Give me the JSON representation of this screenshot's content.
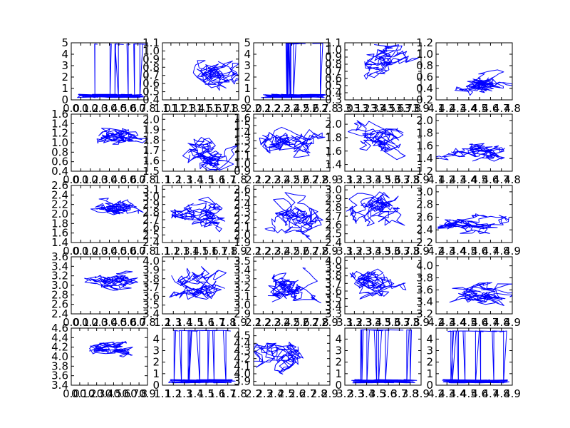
{
  "figure": {
    "grid": false,
    "line_color": "#0000ff",
    "layout": "5 rows x 5 columns of line subplots, no titles, no axis labels, no legend"
  },
  "chart_data": [
    {
      "type": "line",
      "xticks": [
        "0.0",
        "0.1",
        "0.2",
        "0.3",
        "0.4",
        "0.5",
        "0.6",
        "0.7",
        "0.8"
      ],
      "yticks": [
        "0",
        "1",
        "2",
        "3",
        "4",
        "5"
      ],
      "xlim": [
        0.0,
        0.8
      ],
      "ylim": [
        0,
        5
      ],
      "pattern": "spikes",
      "spike_top": 4.9
    },
    {
      "type": "line",
      "xticks": [
        "1.0",
        "1.1",
        "1.2",
        "1.3",
        "1.4",
        "1.5",
        "1.6",
        "1.7",
        "1.8",
        "1.9"
      ],
      "yticks": [
        "0.4",
        "0.5",
        "0.6",
        "0.7",
        "0.8",
        "0.9",
        "1.0",
        "1.1"
      ],
      "xlim": [
        1.0,
        1.9
      ],
      "ylim": [
        0.4,
        1.1
      ],
      "pattern": "walk",
      "center": [
        1.55,
        0.65
      ],
      "spread": [
        0.3,
        0.2
      ]
    },
    {
      "type": "line",
      "xticks": [
        "2.0",
        "2.1",
        "2.2",
        "2.3",
        "2.4",
        "2.5",
        "2.6",
        "2.7",
        "2.8"
      ],
      "yticks": [
        "0",
        "1",
        "2",
        "3",
        "4",
        "5"
      ],
      "xlim": [
        2.0,
        2.8
      ],
      "ylim": [
        0,
        5
      ],
      "pattern": "spikes",
      "spike_top": 4.95
    },
    {
      "type": "line",
      "xticks": [
        "3.0",
        "3.1",
        "3.2",
        "3.3",
        "3.4",
        "3.5",
        "3.6",
        "3.7",
        "3.8",
        "3.9"
      ],
      "yticks": [
        "0.3",
        "0.4",
        "0.5",
        "0.6",
        "0.7",
        "0.8",
        "0.9",
        "1.0",
        "1.1"
      ],
      "xlim": [
        3.0,
        3.9
      ],
      "ylim": [
        0.3,
        1.1
      ],
      "pattern": "walk",
      "center": [
        3.5,
        0.85
      ],
      "spread": [
        0.3,
        0.2
      ]
    },
    {
      "type": "line",
      "xticks": [
        "4.1",
        "4.2",
        "4.3",
        "4.4",
        "4.5",
        "4.6",
        "4.7",
        "4.8"
      ],
      "yticks": [
        "0.2",
        "0.4",
        "0.6",
        "0.8",
        "1.0",
        "1.2"
      ],
      "xlim": [
        4.1,
        4.8
      ],
      "ylim": [
        0.2,
        1.2
      ],
      "pattern": "walk",
      "center": [
        4.5,
        0.5
      ],
      "spread": [
        0.25,
        0.2
      ]
    },
    {
      "type": "line",
      "xticks": [
        "0.0",
        "0.1",
        "0.2",
        "0.3",
        "0.4",
        "0.5",
        "0.6",
        "0.7",
        "0.8"
      ],
      "yticks": [
        "0.4",
        "0.6",
        "0.8",
        "1.0",
        "1.2",
        "1.4",
        "1.6"
      ],
      "xlim": [
        0.0,
        0.8
      ],
      "ylim": [
        0.4,
        1.6
      ],
      "pattern": "walk",
      "center": [
        0.5,
        1.15
      ],
      "spread": [
        0.25,
        0.2
      ]
    },
    {
      "type": "line",
      "xticks": [
        "1.1",
        "1.2",
        "1.3",
        "1.4",
        "1.5",
        "1.6",
        "1.7",
        "1.8"
      ],
      "yticks": [
        "1.5",
        "1.6",
        "1.7",
        "1.8",
        "1.9",
        "2.0"
      ],
      "xlim": [
        1.1,
        1.8
      ],
      "ylim": [
        1.5,
        2.05
      ],
      "pattern": "walk",
      "center": [
        1.55,
        1.7
      ],
      "spread": [
        0.25,
        0.18
      ]
    },
    {
      "type": "line",
      "xticks": [
        "2.1",
        "2.2",
        "2.3",
        "2.4",
        "2.5",
        "2.6",
        "2.7",
        "2.8",
        "2.9"
      ],
      "yticks": [
        "0.9",
        "1.0",
        "1.1",
        "1.2",
        "1.3",
        "1.4",
        "1.5",
        "1.6"
      ],
      "xlim": [
        2.1,
        2.9
      ],
      "ylim": [
        0.9,
        1.65
      ],
      "pattern": "walk",
      "center": [
        2.5,
        1.25
      ],
      "spread": [
        0.3,
        0.25
      ]
    },
    {
      "type": "line",
      "xticks": [
        "3.1",
        "3.2",
        "3.3",
        "3.4",
        "3.5",
        "3.6",
        "3.7",
        "3.8",
        "3.9"
      ],
      "yticks": [
        "1.4",
        "1.6",
        "1.8",
        "2.0"
      ],
      "xlim": [
        3.2,
        3.9
      ],
      "ylim": [
        1.3,
        2.15
      ],
      "pattern": "walk",
      "center": [
        3.55,
        1.85
      ],
      "spread": [
        0.25,
        0.25
      ]
    },
    {
      "type": "line",
      "xticks": [
        "4.1",
        "4.2",
        "4.3",
        "4.4",
        "4.5",
        "4.6",
        "4.7",
        "4.8"
      ],
      "yticks": [
        "1.2",
        "1.4",
        "1.6",
        "1.8",
        "2.0"
      ],
      "xlim": [
        4.1,
        4.8
      ],
      "ylim": [
        1.2,
        2.1
      ],
      "pattern": "walk",
      "center": [
        4.5,
        1.5
      ],
      "spread": [
        0.25,
        0.15
      ]
    },
    {
      "type": "line",
      "xticks": [
        "0.0",
        "0.1",
        "0.2",
        "0.3",
        "0.4",
        "0.5",
        "0.6",
        "0.7",
        "0.8"
      ],
      "yticks": [
        "1.4",
        "1.6",
        "1.8",
        "2.0",
        "2.2",
        "2.4",
        "2.6"
      ],
      "xlim": [
        0.0,
        0.8
      ],
      "ylim": [
        1.4,
        2.6
      ],
      "pattern": "walk",
      "center": [
        0.45,
        2.15
      ],
      "spread": [
        0.25,
        0.2
      ]
    },
    {
      "type": "line",
      "xticks": [
        "1.1",
        "1.2",
        "1.3",
        "1.4",
        "1.5",
        "1.6",
        "1.7",
        "1.8",
        "1.9"
      ],
      "yticks": [
        "2.4",
        "2.5",
        "2.6",
        "2.7",
        "2.8",
        "2.9",
        "3.0",
        "3.1"
      ],
      "xlim": [
        1.1,
        1.9
      ],
      "ylim": [
        2.4,
        3.15
      ],
      "pattern": "walk",
      "center": [
        1.5,
        2.75
      ],
      "spread": [
        0.3,
        0.2
      ]
    },
    {
      "type": "line",
      "xticks": [
        "2.1",
        "2.2",
        "2.3",
        "2.4",
        "2.5",
        "2.6",
        "2.7",
        "2.8",
        "2.9"
      ],
      "yticks": [
        "1.9",
        "2.0",
        "2.1",
        "2.2",
        "2.3",
        "2.4",
        "2.5",
        "2.6"
      ],
      "xlim": [
        2.1,
        2.9
      ],
      "ylim": [
        1.9,
        2.65
      ],
      "pattern": "walk",
      "center": [
        2.5,
        2.25
      ],
      "spread": [
        0.3,
        0.25
      ]
    },
    {
      "type": "line",
      "xticks": [
        "3.1",
        "3.2",
        "3.3",
        "3.4",
        "3.5",
        "3.6",
        "3.7",
        "3.8",
        "3.9"
      ],
      "yticks": [
        "2.4",
        "2.5",
        "2.6",
        "2.7",
        "2.8",
        "2.9",
        "3.0"
      ],
      "xlim": [
        3.2,
        3.9
      ],
      "ylim": [
        2.4,
        3.05
      ],
      "pattern": "walk",
      "center": [
        3.5,
        2.8
      ],
      "spread": [
        0.25,
        0.2
      ]
    },
    {
      "type": "line",
      "xticks": [
        "4.2",
        "4.3",
        "4.4",
        "4.5",
        "4.6",
        "4.7",
        "4.8",
        "4.9"
      ],
      "yticks": [
        "2.2",
        "2.4",
        "2.6",
        "2.8",
        "3.0"
      ],
      "xlim": [
        4.2,
        4.9
      ],
      "ylim": [
        2.2,
        3.1
      ],
      "pattern": "walk",
      "center": [
        4.55,
        2.5
      ],
      "spread": [
        0.3,
        0.15
      ]
    },
    {
      "type": "line",
      "xticks": [
        "0.0",
        "0.1",
        "0.2",
        "0.3",
        "0.4",
        "0.5",
        "0.6",
        "0.7",
        "0.8"
      ],
      "yticks": [
        "2.4",
        "2.6",
        "2.8",
        "3.0",
        "3.2",
        "3.4",
        "3.6"
      ],
      "xlim": [
        0.0,
        0.8
      ],
      "ylim": [
        2.4,
        3.6
      ],
      "pattern": "walk",
      "center": [
        0.45,
        3.1
      ],
      "spread": [
        0.25,
        0.2
      ]
    },
    {
      "type": "line",
      "xticks": [
        "1.2",
        "1.3",
        "1.4",
        "1.5",
        "1.6",
        "1.7",
        "1.8",
        "1.9"
      ],
      "yticks": [
        "3.4",
        "3.5",
        "3.6",
        "3.7",
        "3.8",
        "3.9",
        "4.0"
      ],
      "xlim": [
        1.2,
        1.9
      ],
      "ylim": [
        3.4,
        4.05
      ],
      "pattern": "walk",
      "center": [
        1.55,
        3.7
      ],
      "spread": [
        0.25,
        0.2
      ]
    },
    {
      "type": "line",
      "xticks": [
        "2.1",
        "2.2",
        "2.3",
        "2.4",
        "2.5",
        "2.6",
        "2.7",
        "2.8",
        "2.9"
      ],
      "yticks": [
        "2.9",
        "3.0",
        "3.1",
        "3.2",
        "3.3",
        "3.4",
        "3.5"
      ],
      "xlim": [
        2.1,
        2.9
      ],
      "ylim": [
        2.9,
        3.55
      ],
      "pattern": "walk",
      "center": [
        2.5,
        3.25
      ],
      "spread": [
        0.3,
        0.2
      ]
    },
    {
      "type": "line",
      "xticks": [
        "3.1",
        "3.2",
        "3.3",
        "3.4",
        "3.5",
        "3.6",
        "3.7",
        "3.8",
        "3.9"
      ],
      "yticks": [
        "3.3",
        "3.4",
        "3.5",
        "3.6",
        "3.7",
        "3.8",
        "3.9",
        "4.0"
      ],
      "xlim": [
        3.2,
        3.9
      ],
      "ylim": [
        3.3,
        4.05
      ],
      "pattern": "walk",
      "center": [
        3.5,
        3.75
      ],
      "spread": [
        0.25,
        0.2
      ]
    },
    {
      "type": "line",
      "xticks": [
        "4.2",
        "4.3",
        "4.4",
        "4.5",
        "4.6",
        "4.7",
        "4.8",
        "4.9"
      ],
      "yticks": [
        "3.2",
        "3.4",
        "3.6",
        "3.8",
        "4.0"
      ],
      "xlim": [
        4.2,
        4.9
      ],
      "ylim": [
        3.2,
        4.15
      ],
      "pattern": "walk",
      "center": [
        4.55,
        3.5
      ],
      "spread": [
        0.3,
        0.2
      ]
    },
    {
      "type": "line",
      "xticks": [
        "0.0",
        "0.1",
        "0.2",
        "0.3",
        "0.4",
        "0.5",
        "0.6",
        "0.7",
        "0.8",
        "0.9"
      ],
      "yticks": [
        "3.4",
        "3.6",
        "3.8",
        "4.0",
        "4.2",
        "4.4",
        "4.6"
      ],
      "xlim": [
        0.0,
        0.9
      ],
      "ylim": [
        3.4,
        4.6
      ],
      "pattern": "walk",
      "center": [
        0.5,
        4.2
      ],
      "spread": [
        0.3,
        0.15
      ]
    },
    {
      "type": "line",
      "xticks": [
        "1.1",
        "1.2",
        "1.3",
        "1.4",
        "1.5",
        "1.6",
        "1.7",
        "1.8"
      ],
      "yticks": [
        "0",
        "1",
        "2",
        "3",
        "4"
      ],
      "xlim": [
        1.1,
        1.8
      ],
      "ylim": [
        0,
        4.95
      ],
      "pattern": "spikes",
      "spike_top": 4.75
    },
    {
      "type": "line",
      "xticks": [
        "2.2",
        "2.3",
        "2.4",
        "2.5",
        "2.6",
        "2.7",
        "2.8",
        "2.9"
      ],
      "yticks": [
        "3.9",
        "4.0",
        "4.1",
        "4.2",
        "4.3",
        "4.4",
        "4.5"
      ],
      "xlim": [
        2.2,
        2.9
      ],
      "ylim": [
        3.85,
        4.6
      ],
      "pattern": "walk",
      "center": [
        2.5,
        4.25
      ],
      "spread": [
        0.25,
        0.25
      ]
    },
    {
      "type": "line",
      "xticks": [
        "3.2",
        "3.3",
        "3.4",
        "3.5",
        "3.6",
        "3.7",
        "3.8",
        "3.9"
      ],
      "yticks": [
        "0",
        "1",
        "2",
        "3",
        "4"
      ],
      "xlim": [
        3.2,
        3.9
      ],
      "ylim": [
        0,
        4.95
      ],
      "pattern": "spikes",
      "spike_top": 4.8
    },
    {
      "type": "line",
      "xticks": [
        "4.2",
        "4.3",
        "4.4",
        "4.5",
        "4.6",
        "4.7",
        "4.8",
        "4.9"
      ],
      "yticks": [
        "0",
        "1",
        "2",
        "3",
        "4"
      ],
      "xlim": [
        4.2,
        4.9
      ],
      "ylim": [
        0,
        4.95
      ],
      "pattern": "spikes",
      "spike_top": 4.7
    }
  ]
}
